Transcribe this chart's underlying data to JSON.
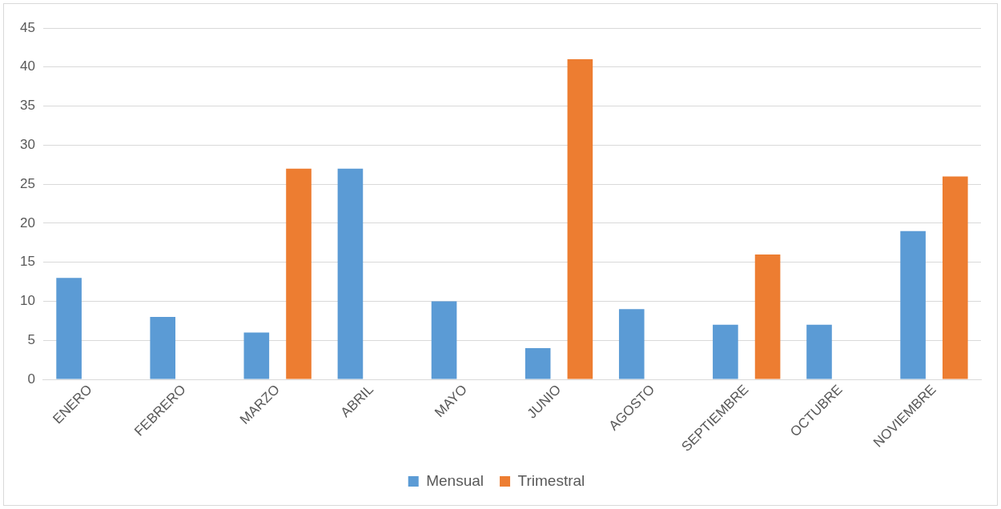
{
  "chart_data": {
    "type": "bar",
    "categories": [
      "ENERO",
      "FEBRERO",
      "MARZO",
      "ABRIL",
      "MAYO",
      "JUNIO",
      "AGOSTO",
      "SEPTIEMBRE",
      "OCTUBRE",
      "NOVIEMBRE"
    ],
    "series": [
      {
        "name": "Mensual",
        "color": "#5b9bd5",
        "values": [
          13,
          8,
          6,
          27,
          10,
          4,
          9,
          7,
          7,
          19
        ]
      },
      {
        "name": "Trimestral",
        "color": "#ed7d31",
        "values": [
          null,
          null,
          27,
          null,
          null,
          41,
          null,
          16,
          null,
          26
        ]
      }
    ],
    "ylim": [
      0,
      45
    ],
    "yticks": [
      0,
      5,
      10,
      15,
      20,
      25,
      30,
      35,
      40,
      45
    ],
    "grid": "y",
    "legend": "bottom"
  }
}
